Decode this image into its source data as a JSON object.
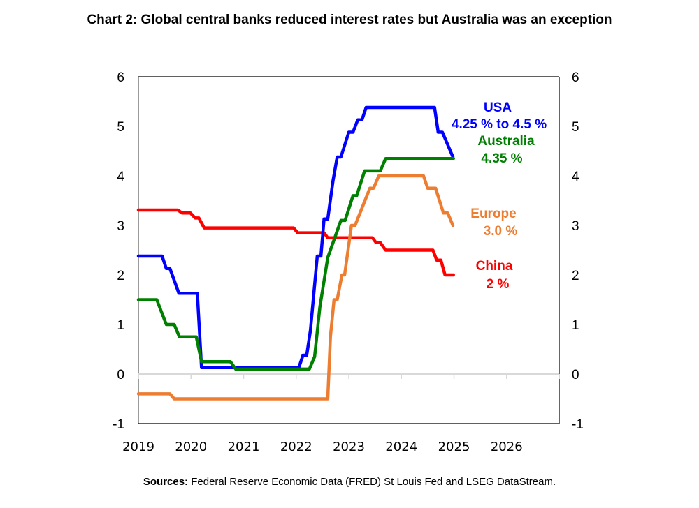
{
  "title": "Chart 2: Global central banks reduced interest rates but Australia was an exception",
  "sources": {
    "label": "Sources:",
    "text": " Federal Reserve Economic Data (FRED) St Louis Fed and LSEG DataStream."
  },
  "chart_data": {
    "type": "line",
    "title": "Chart 2: Global central banks reduced interest rates but Australia was an exception",
    "xlabel": "",
    "ylabel": "",
    "xlim": [
      2019,
      2027
    ],
    "ylim": [
      -1,
      6
    ],
    "x_ticks": [
      "2019",
      "2020",
      "2021",
      "2022",
      "2023",
      "2024",
      "2025",
      "2026"
    ],
    "y_ticks_left": [
      "6",
      "5",
      "4",
      "3",
      "2",
      "1",
      "0",
      "-1"
    ],
    "y_ticks_right": [
      "6",
      "5",
      "4",
      "3",
      "2",
      "1",
      "0",
      "-1"
    ],
    "grid": false,
    "legend": "annotations-right",
    "series": [
      {
        "name": "China",
        "color": "#ff0000",
        "label": "China",
        "value_label": "2 %",
        "points": [
          [
            2019.0,
            3.31
          ],
          [
            2019.75,
            3.31
          ],
          [
            2019.83,
            3.25
          ],
          [
            2019.99,
            3.25
          ],
          [
            2020.08,
            3.15
          ],
          [
            2020.15,
            3.15
          ],
          [
            2020.25,
            2.95
          ],
          [
            2021.95,
            2.95
          ],
          [
            2022.03,
            2.85
          ],
          [
            2022.53,
            2.85
          ],
          [
            2022.6,
            2.75
          ],
          [
            2023.45,
            2.75
          ],
          [
            2023.52,
            2.65
          ],
          [
            2023.6,
            2.65
          ],
          [
            2023.7,
            2.5
          ],
          [
            2024.6,
            2.5
          ],
          [
            2024.67,
            2.3
          ],
          [
            2024.75,
            2.3
          ],
          [
            2024.83,
            2.0
          ],
          [
            2024.99,
            2.0
          ]
        ]
      },
      {
        "name": "USA",
        "color": "#0000ff",
        "label": "USA",
        "value_label": "4.25 % to 4.5 %",
        "points": [
          [
            2019.0,
            2.38
          ],
          [
            2019.45,
            2.38
          ],
          [
            2019.53,
            2.13
          ],
          [
            2019.6,
            2.13
          ],
          [
            2019.77,
            1.63
          ],
          [
            2020.12,
            1.63
          ],
          [
            2020.2,
            0.13
          ],
          [
            2022.05,
            0.13
          ],
          [
            2022.13,
            0.38
          ],
          [
            2022.2,
            0.38
          ],
          [
            2022.27,
            0.88
          ],
          [
            2022.4,
            2.38
          ],
          [
            2022.47,
            2.38
          ],
          [
            2022.53,
            3.13
          ],
          [
            2022.6,
            3.13
          ],
          [
            2022.7,
            3.9
          ],
          [
            2022.78,
            4.38
          ],
          [
            2022.85,
            4.38
          ],
          [
            2023.0,
            4.88
          ],
          [
            2023.08,
            4.88
          ],
          [
            2023.17,
            5.13
          ],
          [
            2023.25,
            5.13
          ],
          [
            2023.33,
            5.38
          ],
          [
            2024.63,
            5.38
          ],
          [
            2024.7,
            4.88
          ],
          [
            2024.78,
            4.88
          ],
          [
            2024.98,
            4.38
          ]
        ]
      },
      {
        "name": "Australia",
        "color": "#008000",
        "label": "Australia",
        "value_label": "4.35 %",
        "points": [
          [
            2019.0,
            1.5
          ],
          [
            2019.35,
            1.5
          ],
          [
            2019.53,
            1.0
          ],
          [
            2019.68,
            1.0
          ],
          [
            2019.78,
            0.75
          ],
          [
            2020.1,
            0.75
          ],
          [
            2020.2,
            0.25
          ],
          [
            2020.75,
            0.25
          ],
          [
            2020.85,
            0.1
          ],
          [
            2022.25,
            0.1
          ],
          [
            2022.35,
            0.35
          ],
          [
            2022.45,
            1.35
          ],
          [
            2022.6,
            2.35
          ],
          [
            2022.85,
            3.1
          ],
          [
            2022.93,
            3.1
          ],
          [
            2023.08,
            3.6
          ],
          [
            2023.15,
            3.6
          ],
          [
            2023.3,
            4.1
          ],
          [
            2023.6,
            4.1
          ],
          [
            2023.7,
            4.35
          ],
          [
            2024.99,
            4.35
          ]
        ]
      },
      {
        "name": "Europe",
        "color": "#ed7d31",
        "label": "Europe",
        "value_label": "3.0 %",
        "points": [
          [
            2019.0,
            -0.4
          ],
          [
            2019.6,
            -0.4
          ],
          [
            2019.68,
            -0.5
          ],
          [
            2022.6,
            -0.5
          ],
          [
            2022.65,
            0.75
          ],
          [
            2022.72,
            1.5
          ],
          [
            2022.78,
            1.5
          ],
          [
            2022.87,
            2.0
          ],
          [
            2022.92,
            2.0
          ],
          [
            2023.05,
            3.0
          ],
          [
            2023.12,
            3.0
          ],
          [
            2023.4,
            3.75
          ],
          [
            2023.47,
            3.75
          ],
          [
            2023.57,
            4.0
          ],
          [
            2024.42,
            4.0
          ],
          [
            2024.5,
            3.75
          ],
          [
            2024.65,
            3.75
          ],
          [
            2024.8,
            3.25
          ],
          [
            2024.88,
            3.25
          ],
          [
            2024.98,
            3.0
          ]
        ]
      }
    ]
  }
}
